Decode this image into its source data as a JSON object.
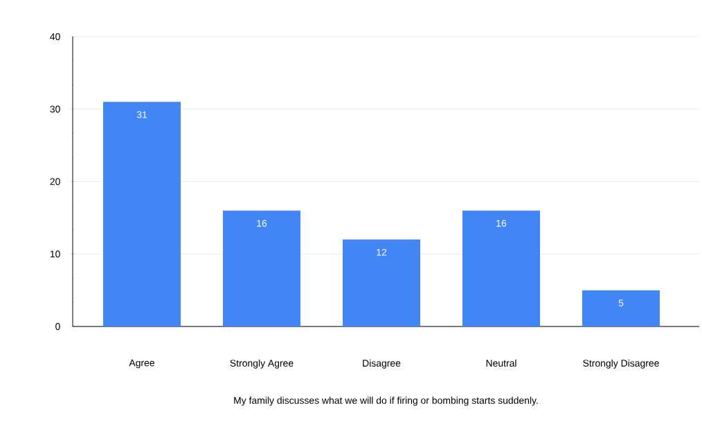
{
  "chart_data": {
    "type": "bar",
    "xlabel": "My family discusses what we will do if firing or bombing starts suddenly.",
    "categories": [
      "Agree",
      "Strongly Agree",
      "Disagree",
      "Neutral",
      "Strongly Disagree"
    ],
    "values": [
      31,
      16,
      12,
      16,
      5
    ],
    "color": "#4285f4",
    "ylim": [
      0,
      40
    ],
    "yticks": [
      0,
      10,
      20,
      30,
      40
    ],
    "grid": "y",
    "data_labels": true
  }
}
